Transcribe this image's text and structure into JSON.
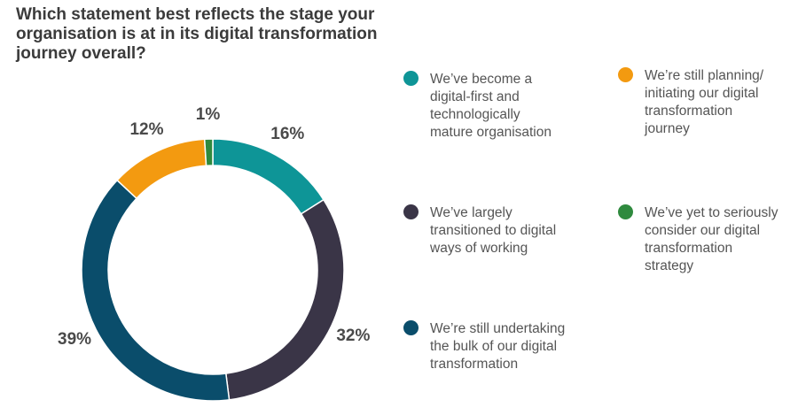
{
  "title": "Which statement best reflects the stage your organisation is at in its digital transformation journey overall?",
  "chart_data": {
    "type": "donut",
    "title": "Which statement best reflects the stage your organisation is at in its digital transformation journey overall?",
    "slices": [
      {
        "label": "We’ve become a\ndigital-first and\ntechnologically\nmature organisation",
        "value": 16,
        "display": "16%",
        "color": "#0e9597"
      },
      {
        "label": "We’ve largely\ntransitioned to digital\nways of working",
        "value": 32,
        "display": "32%",
        "color": "#3a3547"
      },
      {
        "label": "We’re still undertaking\nthe bulk of our digital\ntransformation",
        "value": 39,
        "display": "39%",
        "color": "#0a4d6b"
      },
      {
        "label": "We’re still planning/\ninitiating our digital\ntransformation\njourney",
        "value": 12,
        "display": "12%",
        "color": "#f39a10"
      },
      {
        "label": "We’ve yet to seriously\nconsider our digital\ntransformation\nstrategy",
        "value": 1,
        "display": "1%",
        "color": "#2f8a3e"
      }
    ],
    "legend_placement": "right"
  }
}
